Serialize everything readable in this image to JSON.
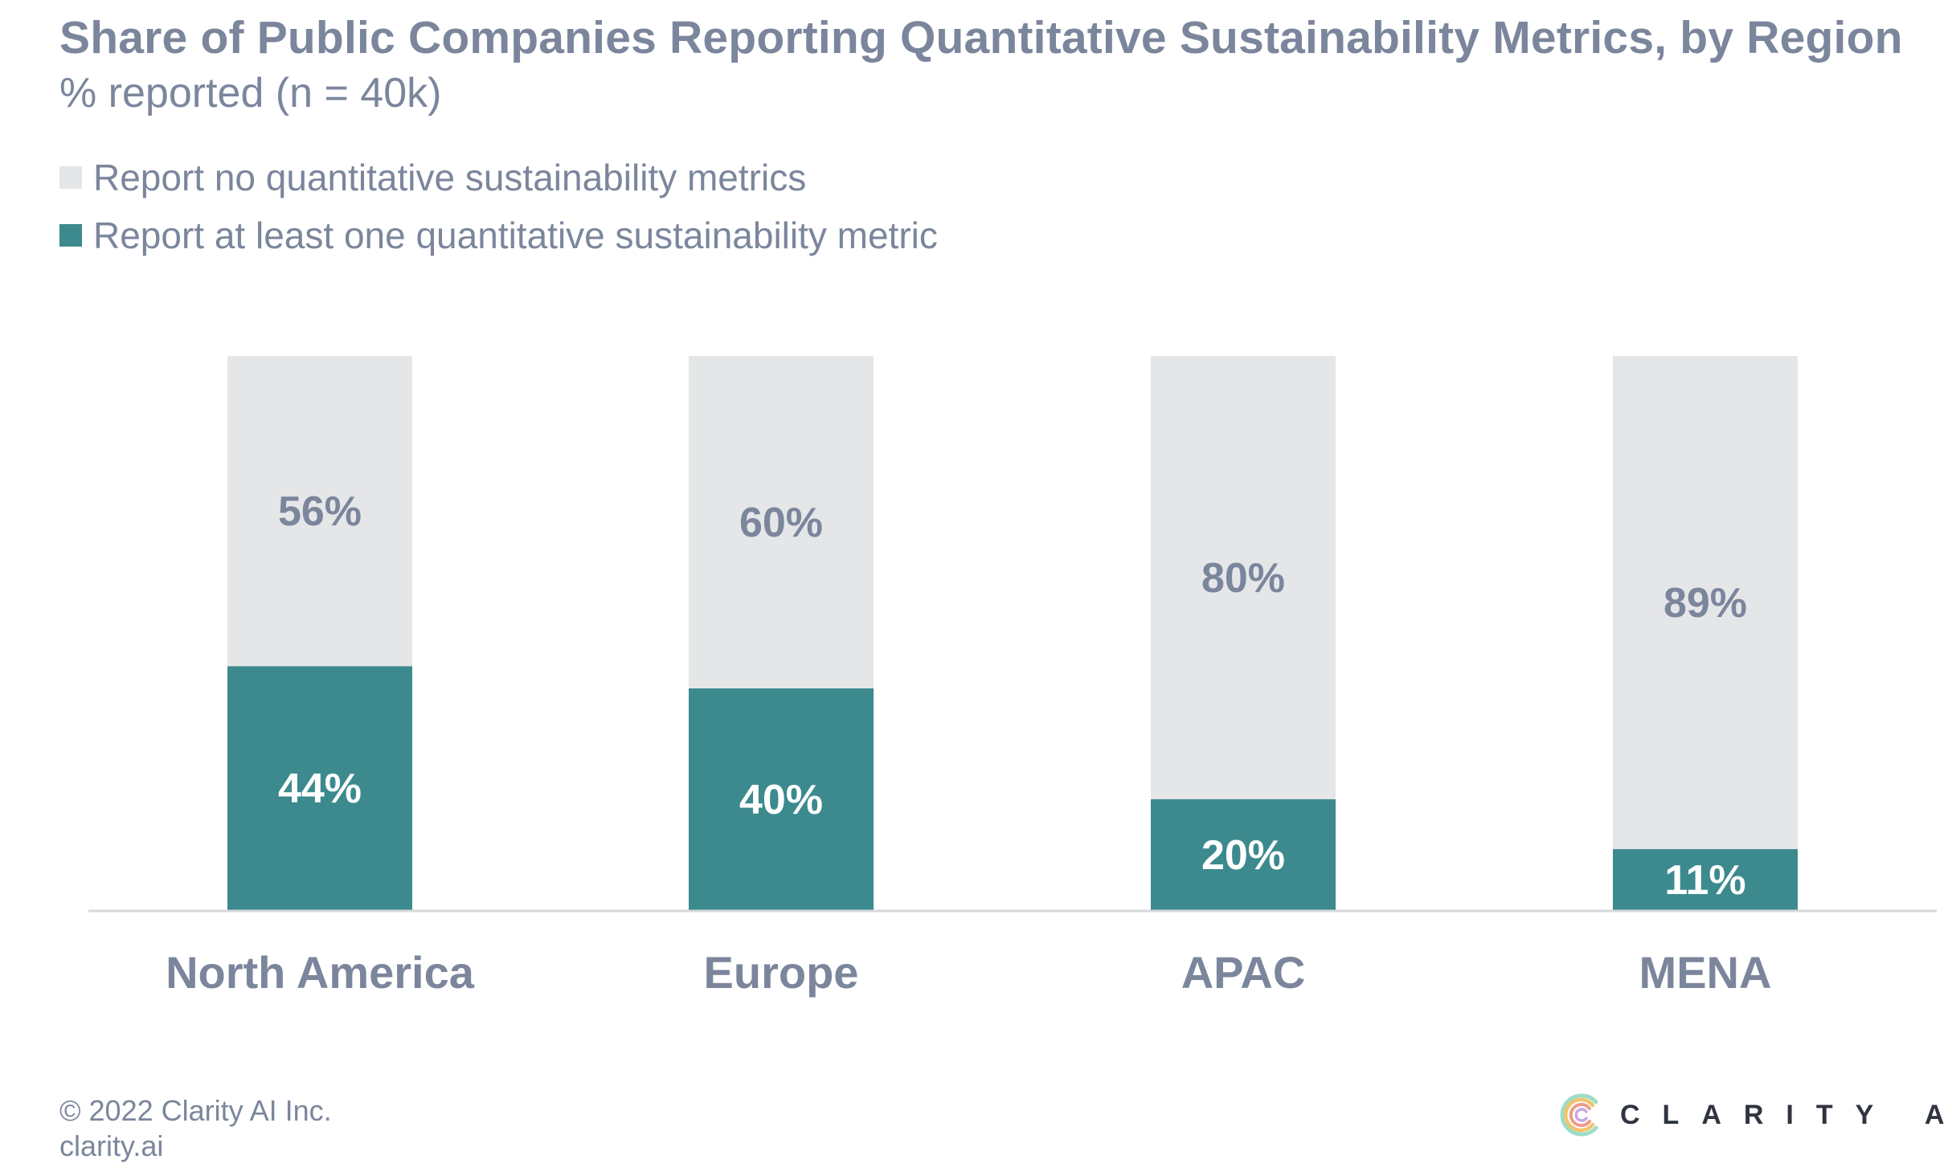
{
  "colors": {
    "text": "#7b869c",
    "no_metrics": "#e5e6e8",
    "at_least_one": "#3c8a8e",
    "value_on_dark": "#ffffff",
    "axis_line": "#d6d8dc",
    "logo_text": "#2f3440"
  },
  "header": {
    "title": "Share of Public Companies Reporting Quantitative Sustainability Metrics, by Region",
    "subtitle": "% reported (n = 40k)"
  },
  "chart_data": {
    "type": "bar",
    "stacked": true,
    "title": "Share of Public Companies Reporting Quantitative Sustainability Metrics, by Region",
    "subtitle": "% reported (n = 40k)",
    "categories": [
      "North America",
      "Europe",
      "APAC",
      "MENA"
    ],
    "series": [
      {
        "name": "Report at least one quantitative sustainability metric",
        "color": "#3c8a8e",
        "values": [
          44,
          40,
          20,
          11
        ],
        "labels": [
          "44%",
          "40%",
          "20%",
          "11%"
        ]
      },
      {
        "name": "Report no quantitative sustainability metrics",
        "color": "#e5e6e8",
        "values": [
          56,
          60,
          80,
          89
        ],
        "labels": [
          "56%",
          "60%",
          "80%",
          "89%"
        ]
      }
    ],
    "legend": [
      {
        "label": "Report no quantitative sustainability metrics",
        "color": "#e5e6e8"
      },
      {
        "label": "Report at least one quantitative sustainability metric",
        "color": "#3c8a8e"
      }
    ],
    "legend_position": "top-left",
    "ylim": [
      0,
      100
    ],
    "xlabel": "",
    "ylabel": "",
    "grid": false
  },
  "footer": {
    "copyright": "© 2022 Clarity AI Inc.",
    "website": "clarity.ai"
  },
  "logo": {
    "text": "CLARITY AI",
    "icon": "clarity-c-icon"
  }
}
